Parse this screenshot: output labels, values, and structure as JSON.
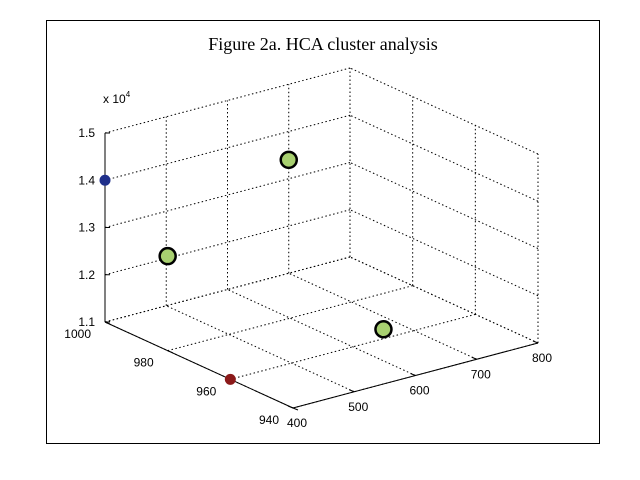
{
  "chart_data": {
    "type": "scatter",
    "title": "Figure 2a. HCA cluster analysis",
    "xlabel": "",
    "ylabel": "",
    "zlabel": "",
    "x_ticks": [
      "400",
      "500",
      "600",
      "700",
      "800"
    ],
    "y_ticks": [
      "940",
      "960",
      "980",
      "1000"
    ],
    "z_ticks": [
      "1.1",
      "1.2",
      "1.3",
      "1.4",
      "1.5"
    ],
    "z_multiplier": "x 10",
    "z_multiplier_exponent": "4",
    "xlim": [
      400,
      800
    ],
    "ylim": [
      940,
      1000
    ],
    "zlim": [
      11000,
      15000
    ],
    "grid": true,
    "points": [
      {
        "x": 400,
        "y": 1000,
        "z": 14000,
        "color": "#1f2f8a",
        "cluster": "blue"
      },
      {
        "x": 400,
        "y": 980,
        "z": 13000,
        "color": "#a8d070",
        "cluster": "green"
      },
      {
        "x": 700,
        "y": 1000,
        "z": 13400,
        "color": "#a8d070",
        "cluster": "green"
      },
      {
        "x": 650,
        "y": 960,
        "z": 11200,
        "color": "#a8d070",
        "cluster": "green"
      },
      {
        "x": 400,
        "y": 960,
        "z": 11000,
        "color": "#8b1a1a",
        "cluster": "red"
      }
    ]
  }
}
